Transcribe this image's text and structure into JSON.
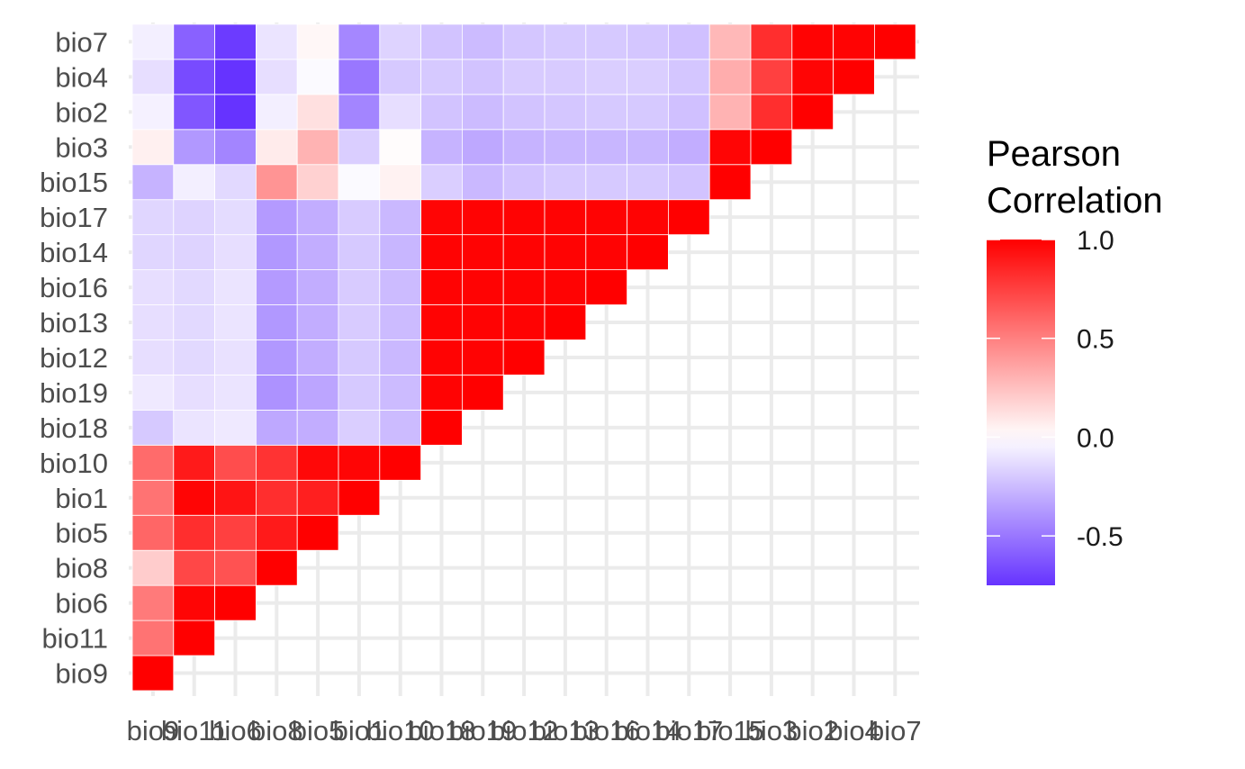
{
  "chart_data": {
    "type": "heatmap",
    "title": "",
    "xlabel": "",
    "ylabel": "",
    "variables": [
      "bio9",
      "bio11",
      "bio6",
      "bio8",
      "bio5",
      "bio1",
      "bio10",
      "bio18",
      "bio19",
      "bio12",
      "bio13",
      "bio16",
      "bio14",
      "bio17",
      "bio15",
      "bio3",
      "bio2",
      "bio4",
      "bio7"
    ],
    "x_tick_labels": [
      "bio9",
      "bio11",
      "bio6",
      "bio8",
      "bio5",
      "bio1",
      "bio10",
      "bio18",
      "bio19",
      "bio12",
      "bio13",
      "bio16",
      "bio14",
      "bio17",
      "bio15",
      "bio3",
      "bio2",
      "bio4",
      "bio7"
    ],
    "y_tick_labels": [
      "bio9",
      "bio11",
      "bio6",
      "bio8",
      "bio5",
      "bio1",
      "bio10",
      "bio18",
      "bio19",
      "bio12",
      "bio13",
      "bio16",
      "bio14",
      "bio17",
      "bio15",
      "bio3",
      "bio2",
      "bio4",
      "bio7"
    ],
    "matrix_note_lower_triangle_only": true,
    "values": [
      [
        1.0
      ],
      [
        0.55,
        1.0
      ],
      [
        0.52,
        0.98,
        1.0
      ],
      [
        0.2,
        0.72,
        0.68,
        1.0
      ],
      [
        0.6,
        0.82,
        0.75,
        0.9,
        1.0
      ],
      [
        0.55,
        0.98,
        0.92,
        0.82,
        0.88,
        1.0
      ],
      [
        0.58,
        0.9,
        0.7,
        0.8,
        0.97,
        0.98,
        1.0
      ],
      [
        -0.2,
        -0.1,
        -0.08,
        -0.32,
        -0.3,
        -0.18,
        -0.25,
        1.0
      ],
      [
        -0.08,
        -0.12,
        -0.1,
        -0.4,
        -0.33,
        -0.2,
        -0.25,
        0.99,
        1.0
      ],
      [
        -0.12,
        -0.14,
        -0.11,
        -0.38,
        -0.3,
        -0.2,
        -0.26,
        0.99,
        0.99,
        1.0
      ],
      [
        -0.12,
        -0.14,
        -0.1,
        -0.38,
        -0.3,
        -0.19,
        -0.25,
        0.99,
        0.99,
        0.99,
        1.0
      ],
      [
        -0.12,
        -0.14,
        -0.1,
        -0.37,
        -0.3,
        -0.19,
        -0.25,
        0.99,
        0.99,
        0.99,
        0.99,
        1.0
      ],
      [
        -0.15,
        -0.16,
        -0.12,
        -0.38,
        -0.3,
        -0.2,
        -0.27,
        0.99,
        0.99,
        0.99,
        0.99,
        0.99,
        1.0
      ],
      [
        -0.15,
        -0.16,
        -0.13,
        -0.37,
        -0.3,
        -0.19,
        -0.26,
        0.98,
        0.99,
        0.99,
        0.99,
        0.99,
        0.99,
        1.0
      ],
      [
        -0.28,
        -0.06,
        -0.14,
        0.42,
        0.18,
        -0.02,
        0.05,
        -0.18,
        -0.26,
        -0.22,
        -0.2,
        -0.2,
        -0.2,
        -0.22,
        1.0
      ],
      [
        0.06,
        -0.38,
        -0.45,
        0.08,
        0.3,
        -0.18,
        0.01,
        -0.28,
        -0.32,
        -0.28,
        -0.27,
        -0.27,
        -0.27,
        -0.3,
        0.98,
        1.0
      ],
      [
        -0.05,
        -0.62,
        -0.75,
        -0.06,
        0.12,
        -0.45,
        -0.12,
        -0.22,
        -0.25,
        -0.22,
        -0.21,
        -0.2,
        -0.2,
        -0.23,
        0.3,
        0.82,
        1.0
      ],
      [
        -0.12,
        -0.66,
        -0.78,
        -0.12,
        -0.02,
        -0.5,
        -0.2,
        -0.2,
        -0.22,
        -0.19,
        -0.19,
        -0.18,
        -0.18,
        -0.21,
        0.32,
        0.75,
        0.98,
        1.0
      ],
      [
        -0.06,
        -0.58,
        -0.72,
        -0.1,
        0.03,
        -0.44,
        -0.16,
        -0.22,
        -0.25,
        -0.21,
        -0.2,
        -0.2,
        -0.21,
        -0.23,
        0.28,
        0.82,
        0.99,
        0.99,
        1.0
      ]
    ],
    "color_scale": {
      "low_color": "#6633ff",
      "mid_color": "#ffffff",
      "high_color": "#ff0000",
      "limits": [
        -0.75,
        1.0
      ],
      "midpoint": 0.0
    },
    "legend": {
      "title_line1": "Pearson",
      "title_line2": "Correlation",
      "breaks": [
        1.0,
        0.5,
        0.0,
        -0.5
      ],
      "labels": [
        "1.0",
        "0.5",
        "0.0",
        "-0.5"
      ],
      "position": "right"
    },
    "grid": true
  }
}
